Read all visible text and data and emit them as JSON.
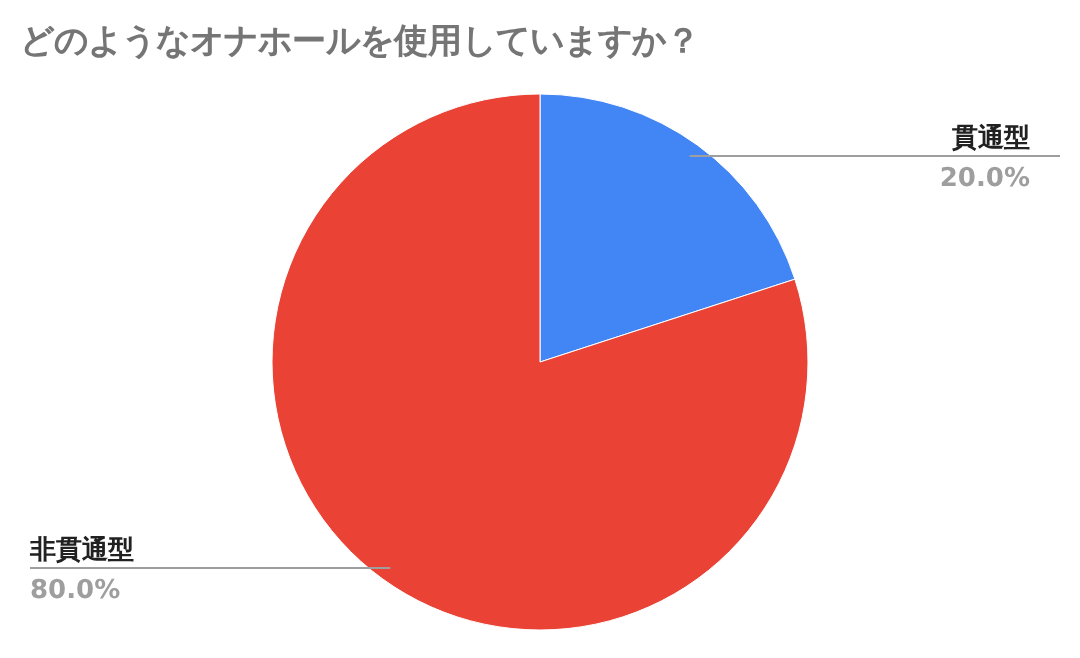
{
  "chart_data": {
    "type": "pie",
    "title": "どのようなオナホールを使用していますか？",
    "categories": [
      "貫通型",
      "非貫通型"
    ],
    "values": [
      20,
      80
    ],
    "value_labels": [
      "20.0%",
      "80.0%"
    ],
    "colors": [
      "#4285f4",
      "#ea4335"
    ]
  }
}
